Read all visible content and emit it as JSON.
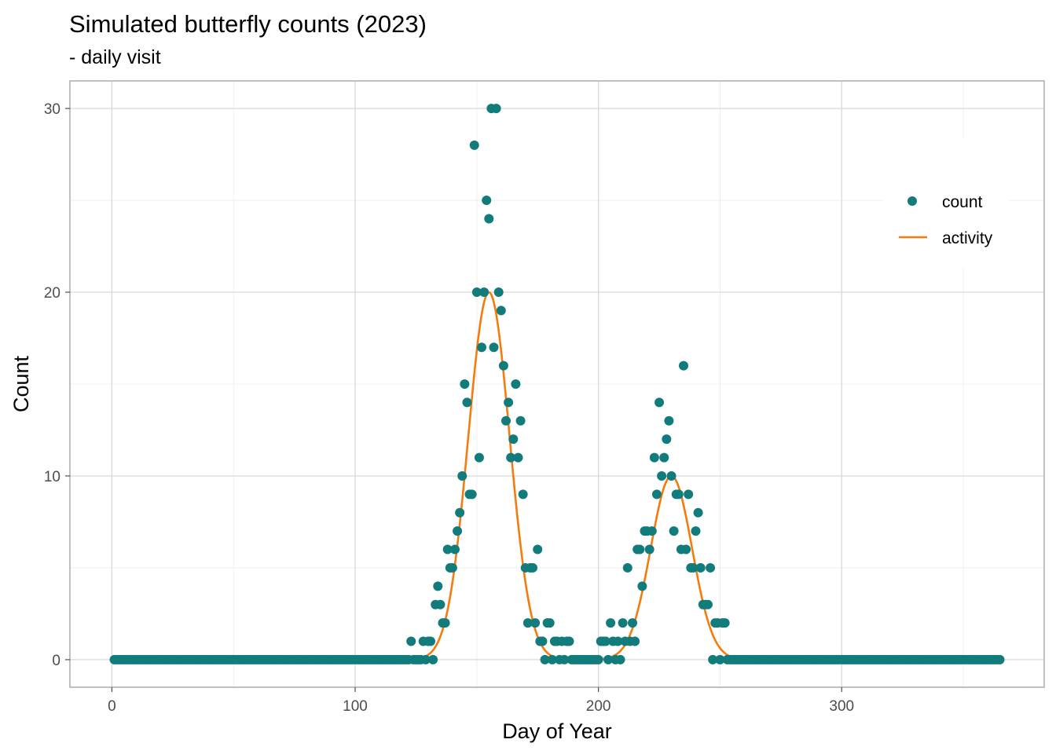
{
  "chart_data": {
    "type": "scatter",
    "title": "Simulated butterfly counts (2023)",
    "subtitle": "- daily visit",
    "xlabel": "Day of Year",
    "ylabel": "Count",
    "xlim": [
      -17.25,
      383.25
    ],
    "ylim": [
      -1.5,
      31.5
    ],
    "x_ticks": [
      0,
      100,
      200,
      300
    ],
    "x_tick_labels": [
      "0",
      "100",
      "200",
      "300"
    ],
    "y_ticks": [
      0,
      10,
      20,
      30
    ],
    "y_tick_labels": [
      "0",
      "10",
      "20",
      "30"
    ],
    "grid": true,
    "legend": {
      "position": "top-right-inside",
      "entries": [
        {
          "label": "count",
          "kind": "point",
          "color": "#127B7B"
        },
        {
          "label": "activity",
          "kind": "line",
          "color": "#F47C0C"
        }
      ]
    },
    "series": [
      {
        "name": "count",
        "type": "scatter",
        "color": "#127B7B",
        "points": [
          [
            123,
            1
          ],
          [
            126,
            0
          ],
          [
            127,
            0
          ],
          [
            128,
            1
          ],
          [
            129,
            0
          ],
          [
            130,
            1
          ],
          [
            131,
            1
          ],
          [
            133,
            3
          ],
          [
            134,
            4
          ],
          [
            135,
            3
          ],
          [
            136,
            2
          ],
          [
            137,
            2
          ],
          [
            138,
            6
          ],
          [
            139,
            5
          ],
          [
            140,
            5
          ],
          [
            141,
            6
          ],
          [
            142,
            7
          ],
          [
            143,
            8
          ],
          [
            144,
            10
          ],
          [
            145,
            15
          ],
          [
            146,
            14
          ],
          [
            147,
            9
          ],
          [
            148,
            9
          ],
          [
            149,
            28
          ],
          [
            150,
            20
          ],
          [
            151,
            11
          ],
          [
            152,
            17
          ],
          [
            153,
            20
          ],
          [
            154,
            25
          ],
          [
            155,
            24
          ],
          [
            156,
            30
          ],
          [
            157,
            17
          ],
          [
            158,
            30
          ],
          [
            159,
            20
          ],
          [
            160,
            19
          ],
          [
            161,
            16
          ],
          [
            162,
            13
          ],
          [
            163,
            14
          ],
          [
            164,
            11
          ],
          [
            165,
            12
          ],
          [
            166,
            15
          ],
          [
            167,
            11
          ],
          [
            168,
            13
          ],
          [
            169,
            9
          ],
          [
            170,
            5
          ],
          [
            171,
            2
          ],
          [
            172,
            5
          ],
          [
            173,
            5
          ],
          [
            174,
            2
          ],
          [
            175,
            6
          ],
          [
            176,
            1
          ],
          [
            177,
            1
          ],
          [
            178,
            0
          ],
          [
            179,
            2
          ],
          [
            180,
            2
          ],
          [
            181,
            0
          ],
          [
            182,
            1
          ],
          [
            183,
            1
          ],
          [
            184,
            0
          ],
          [
            185,
            1
          ],
          [
            186,
            0
          ],
          [
            187,
            1
          ],
          [
            188,
            1
          ],
          [
            201,
            1
          ],
          [
            202,
            1
          ],
          [
            203,
            1
          ],
          [
            204,
            0
          ],
          [
            205,
            2
          ],
          [
            206,
            1
          ],
          [
            207,
            0
          ],
          [
            208,
            1
          ],
          [
            209,
            0
          ],
          [
            210,
            2
          ],
          [
            211,
            1
          ],
          [
            212,
            5
          ],
          [
            213,
            1
          ],
          [
            214,
            2
          ],
          [
            215,
            1
          ],
          [
            216,
            6
          ],
          [
            217,
            6
          ],
          [
            218,
            4
          ],
          [
            219,
            7
          ],
          [
            220,
            7
          ],
          [
            221,
            6
          ],
          [
            222,
            7
          ],
          [
            223,
            11
          ],
          [
            224,
            9
          ],
          [
            225,
            14
          ],
          [
            226,
            10
          ],
          [
            227,
            11
          ],
          [
            228,
            12
          ],
          [
            229,
            13
          ],
          [
            230,
            10
          ],
          [
            231,
            7
          ],
          [
            232,
            9
          ],
          [
            233,
            9
          ],
          [
            234,
            6
          ],
          [
            235,
            16
          ],
          [
            236,
            6
          ],
          [
            237,
            9
          ],
          [
            238,
            5
          ],
          [
            239,
            5
          ],
          [
            240,
            7
          ],
          [
            241,
            8
          ],
          [
            242,
            5
          ],
          [
            243,
            3
          ],
          [
            244,
            3
          ],
          [
            245,
            3
          ],
          [
            246,
            5
          ],
          [
            247,
            0
          ],
          [
            248,
            2
          ],
          [
            249,
            2
          ],
          [
            250,
            0
          ],
          [
            251,
            2
          ],
          [
            252,
            2
          ],
          [
            253,
            0
          ]
        ],
        "zero_default_range": [
          1,
          365
        ]
      },
      {
        "name": "activity",
        "type": "line",
        "color": "#F47C0C",
        "components": [
          {
            "peak_day": 155,
            "height": 20,
            "sd": 8.5
          },
          {
            "peak_day": 230,
            "height": 10,
            "sd": 8.5
          }
        ],
        "x_range": [
          1,
          365
        ]
      }
    ]
  }
}
